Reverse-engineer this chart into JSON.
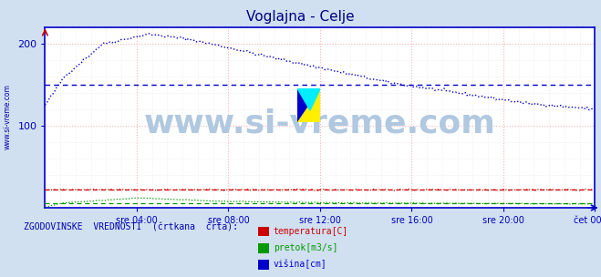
{
  "title": "Voglajna - Celje",
  "title_color": "#000080",
  "bg_color": "#d0e0f0",
  "plot_bg_color": "#ffffff",
  "grid_color_pink": "#ffb0b0",
  "grid_color_minor": "#e8e8e8",
  "x_tick_labels": [
    "sre 04:00",
    "sre 08:00",
    "sre 12:00",
    "sre 16:00",
    "sre 20:00",
    "čet 00:00"
  ],
  "x_tick_positions": [
    48,
    96,
    144,
    192,
    240,
    288
  ],
  "total_points": 288,
  "ylim": [
    0,
    220
  ],
  "yticks": [
    100,
    200
  ],
  "ylabel_color": "#0000bb",
  "axis_color": "#0000cc",
  "watermark_text": "www.si-vreme.com",
  "watermark_color": "#b0c8e0",
  "watermark_fontsize": 26,
  "sidebar_text": "www.si-vreme.com",
  "sidebar_color": "#0000aa",
  "legend_title": "ZGODOVINSKE  VREDNOSTI  (črtkana  črta):",
  "legend_title_color": "#0000aa",
  "legend_items": [
    "temperatura[C]",
    "pretok[m3/s]",
    "višina[cm]"
  ],
  "legend_colors": [
    "#cc0000",
    "#009900",
    "#0000cc"
  ],
  "temp_color": "#cc0000",
  "flow_color": "#009900",
  "height_color": "#0000cc",
  "hist_height_y": 150,
  "hist_temp_y": 22,
  "hist_flow_y": 6
}
